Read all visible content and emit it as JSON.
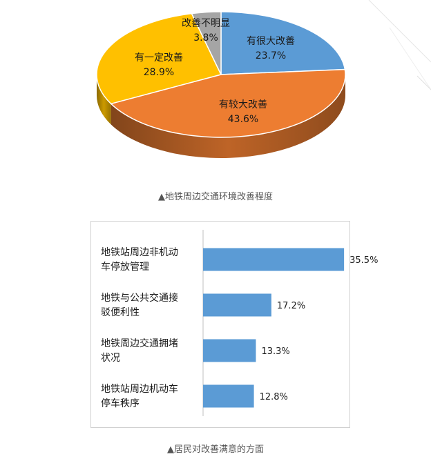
{
  "charts": [
    {
      "chart_data": {
        "type": "pie",
        "title": "▲地铁周边交通环境改善程度",
        "slices": [
          {
            "label": "有很大改善",
            "value": 23.7,
            "value_label": "23.7%",
            "color": "#5b9bd5"
          },
          {
            "label": "有较大改善",
            "value": 43.6,
            "value_label": "43.6%",
            "color": "#ed7d31"
          },
          {
            "label": "有一定改善",
            "value": 28.9,
            "value_label": "28.9%",
            "color": "#ffc000"
          },
          {
            "label": "改善不明显",
            "value": 3.8,
            "value_label": "3.8%",
            "color": "#a5a5a5"
          }
        ]
      }
    },
    {
      "chart_data": {
        "type": "bar",
        "orientation": "horizontal",
        "title": "▲居民对改善满意的方面",
        "categories": [
          [
            "地铁站周边非机动",
            "车停放管理"
          ],
          [
            "地铁与公共交通接",
            "驳便利性"
          ],
          [
            "地铁周边交通拥堵",
            "状况"
          ],
          [
            "地铁站周边机动车",
            "停车秩序"
          ]
        ],
        "values": [
          35.5,
          17.2,
          13.3,
          12.8
        ],
        "value_labels": [
          "35.5%",
          "17.2%",
          "13.3%",
          "12.8%"
        ],
        "color": "#5b9bd5",
        "xlim": [
          0,
          40
        ]
      }
    }
  ]
}
